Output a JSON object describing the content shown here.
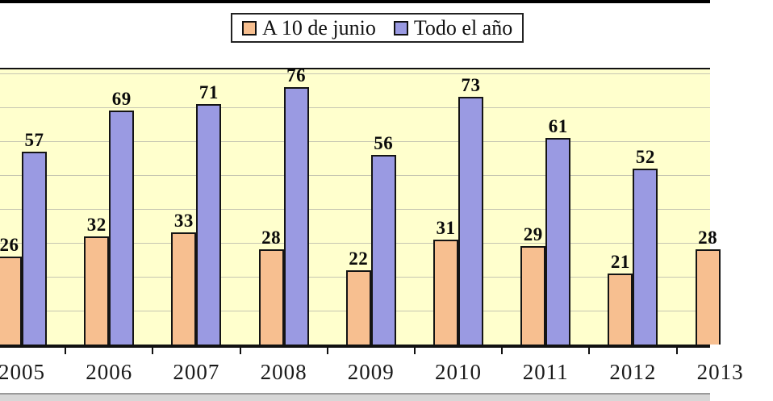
{
  "legend": {
    "items": [
      {
        "label": "A 10 de junio",
        "color": "#F7BF90"
      },
      {
        "label": "Todo el año",
        "color": "#9A9AE2"
      }
    ]
  },
  "chart_data": {
    "type": "bar",
    "categories": [
      "2005",
      "2006",
      "2007",
      "2008",
      "2009",
      "2010",
      "2011",
      "2012",
      "2013"
    ],
    "series": [
      {
        "name": "A 10 de junio",
        "color": "#F7BF90",
        "values": [
          26,
          32,
          33,
          28,
          22,
          31,
          29,
          21,
          28
        ]
      },
      {
        "name": "Todo el año",
        "color": "#9A9AE2",
        "values": [
          57,
          69,
          71,
          76,
          56,
          73,
          61,
          52,
          null
        ]
      }
    ],
    "title": "",
    "xlabel": "",
    "ylabel": "",
    "ylim": [
      0,
      81
    ],
    "gridline_step": 10,
    "grid": "horizontal",
    "legend_position": "top-center",
    "plot_background": "#FFFFCD",
    "gridline_color": "#C6C6B2",
    "bar_border_color": "#141414",
    "value_labels_shown": true
  },
  "colors": {
    "page_background": "#FFFFFF",
    "top_rule": "#000000",
    "axis": "#111111",
    "bottom_strip": "#D7D7D7",
    "bottom_strip_edge": "#9A9A9A",
    "text": "#111111"
  }
}
